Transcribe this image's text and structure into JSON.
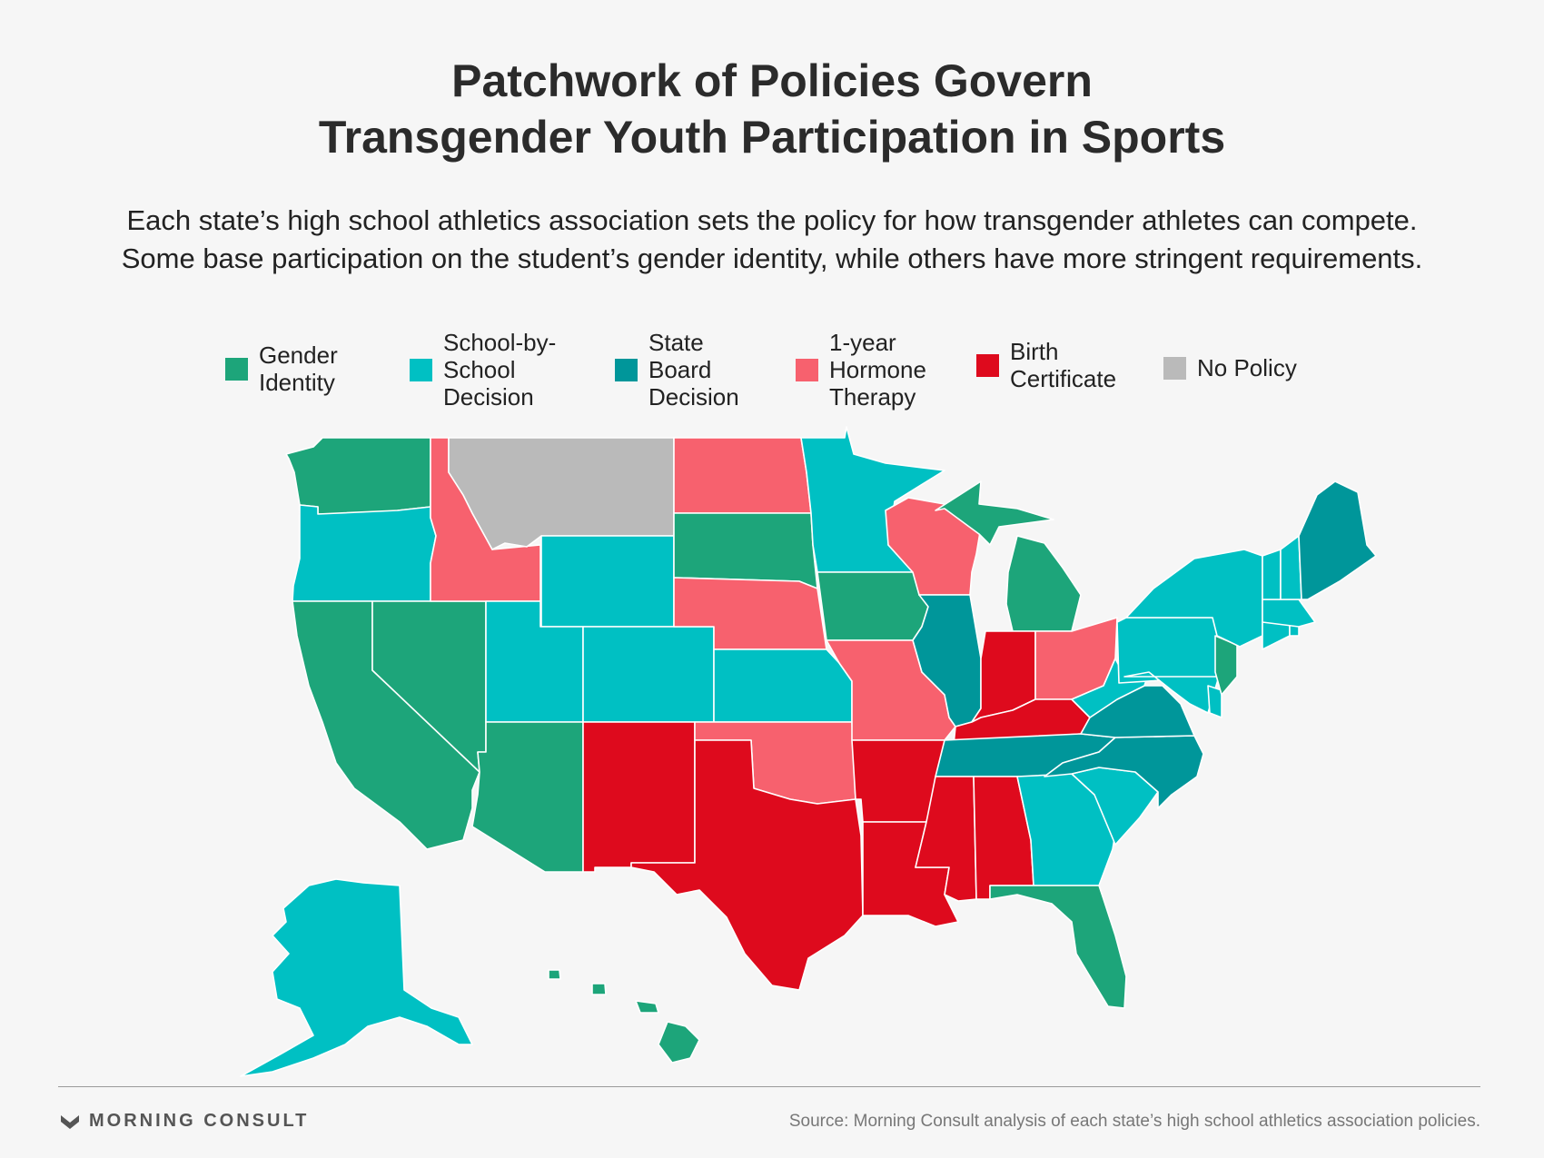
{
  "title": {
    "line1": "Patchwork of Policies Govern",
    "line2": "Transgender Youth Participation in Sports"
  },
  "subtitle": {
    "line1": "Each state’s high school athletics association sets the policy for how transgender athletes can compete.",
    "line2": "Some base participation on the student’s gender identity, while others have more stringent requirements."
  },
  "legend": [
    {
      "key": "gender",
      "lines": [
        "Gender",
        "Identity"
      ],
      "color": "#1da57a"
    },
    {
      "key": "school",
      "lines": [
        "School-by-",
        "School",
        "Decision"
      ],
      "color": "#00c0c3"
    },
    {
      "key": "board",
      "lines": [
        "State",
        "Board",
        "Decision"
      ],
      "color": "#00969a"
    },
    {
      "key": "hormone",
      "lines": [
        "1-year",
        "Hormone",
        "Therapy"
      ],
      "color": "#f7616e"
    },
    {
      "key": "birth",
      "lines": [
        "Birth",
        "Certificate"
      ],
      "color": "#de0a1d"
    },
    {
      "key": "none",
      "lines": [
        "No Policy"
      ],
      "color": "#bababa"
    }
  ],
  "states": {
    "WA": "gender",
    "OR": "school",
    "CA": "gender",
    "NV": "gender",
    "ID": "hormone",
    "MT": "none",
    "WY": "school",
    "UT": "school",
    "AZ": "gender",
    "CO": "school",
    "NM": "birth",
    "ND": "hormone",
    "SD": "gender",
    "NE": "hormone",
    "KS": "school",
    "OK": "hormone",
    "TX": "birth",
    "MN": "school",
    "IA": "gender",
    "MO": "hormone",
    "AR": "birth",
    "LA": "birth",
    "WI": "hormone",
    "IL": "board",
    "MI": "gender",
    "IN": "birth",
    "OH": "hormone",
    "KY": "birth",
    "TN": "board",
    "MS": "birth",
    "AL": "birth",
    "GA": "school",
    "FL": "gender",
    "SC": "school",
    "NC": "board",
    "VA": "board",
    "WV": "school",
    "PA": "school",
    "NY": "school",
    "NJ": "gender",
    "DE": "school",
    "MD": "school",
    "CT": "school",
    "RI": "school",
    "MA": "school",
    "VT": "school",
    "NH": "school",
    "ME": "board",
    "AK": "school",
    "HI": "gender"
  },
  "footer": {
    "brand": "MORNING CONSULT",
    "source": "Source: Morning Consult analysis of each state’s high school athletics association policies."
  }
}
